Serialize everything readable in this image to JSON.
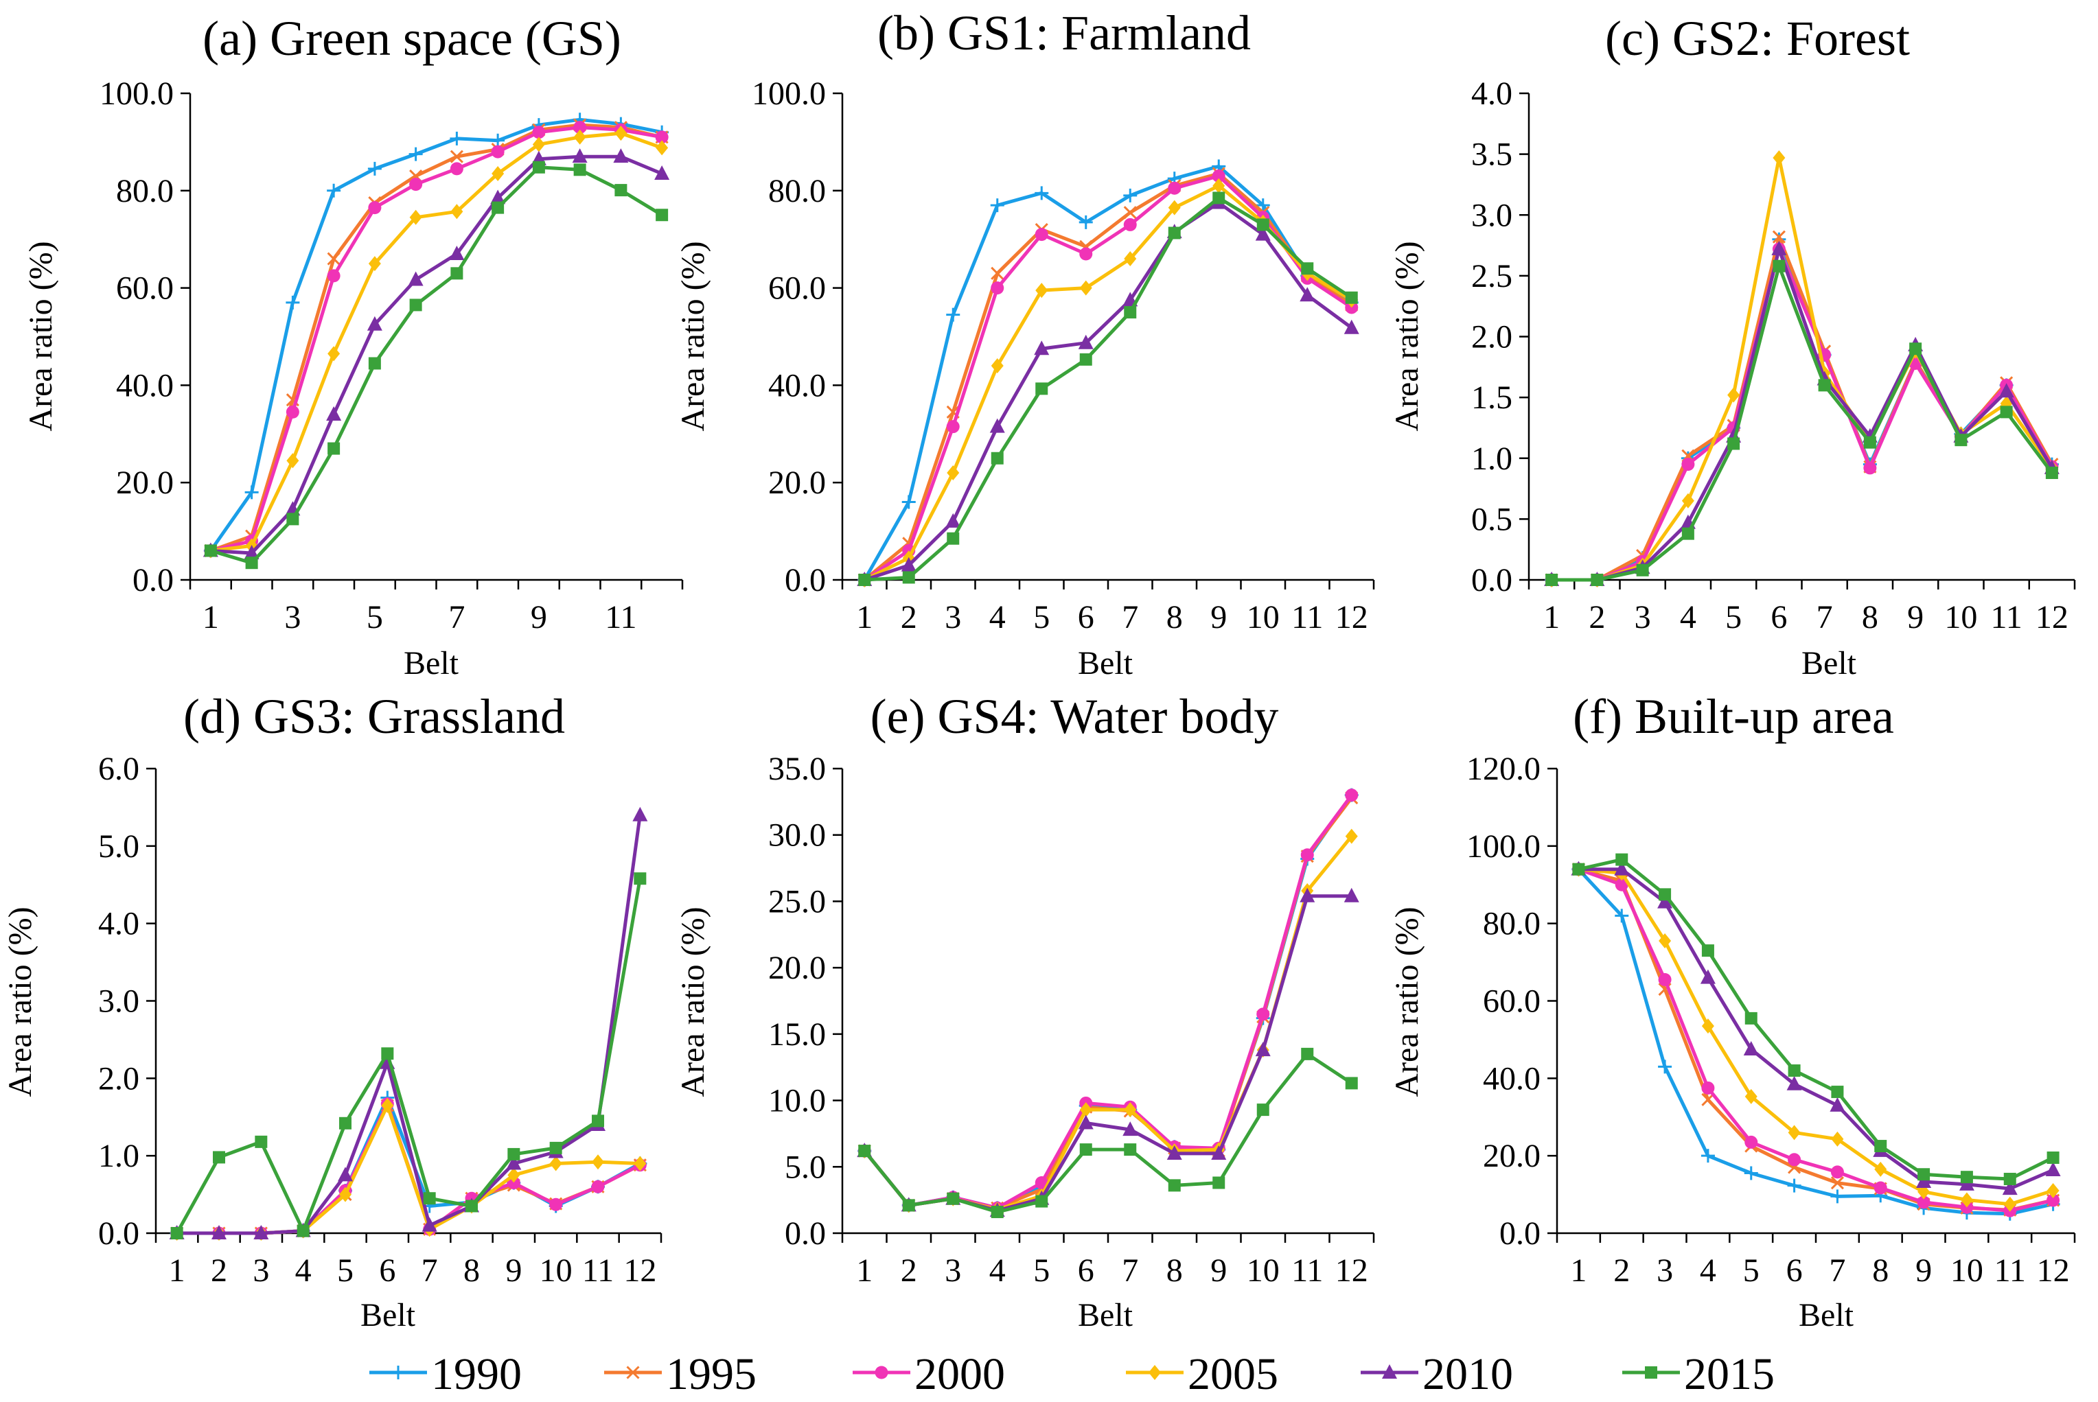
{
  "colors": {
    "1990": "#1a9ee8",
    "1995": "#f47a2f",
    "2000": "#f033b6",
    "2005": "#fbbf0a",
    "2010": "#7a2ea3",
    "2015": "#3aa23a"
  },
  "legend": [
    {
      "year": "1990",
      "marker": "plus"
    },
    {
      "year": "1995",
      "marker": "cross"
    },
    {
      "year": "2000",
      "marker": "circle"
    },
    {
      "year": "2005",
      "marker": "diamond"
    },
    {
      "year": "2010",
      "marker": "triangle"
    },
    {
      "year": "2015",
      "marker": "square"
    }
  ],
  "chart_data": [
    {
      "type": "line",
      "title": "(a) Green space (GS)",
      "xlabel": "Belt",
      "ylabel": "Area ratio (%)",
      "ylim": [
        0,
        100
      ],
      "ystep": 20,
      "ydec": 1,
      "x": [
        1,
        2,
        3,
        4,
        5,
        6,
        7,
        8,
        9,
        10,
        11,
        12
      ],
      "xticks": [
        "1",
        "3",
        "5",
        "7",
        "9",
        "11"
      ],
      "xtick_values": [
        1,
        3,
        5,
        7,
        9,
        11
      ],
      "series": [
        {
          "name": "1990",
          "values": [
            6,
            18,
            57,
            80,
            84.5,
            87.5,
            90.7,
            90.3,
            93.5,
            94.6,
            93.7,
            92
          ]
        },
        {
          "name": "1995",
          "values": [
            6,
            9,
            37,
            66,
            77.5,
            83,
            87,
            88.5,
            92.5,
            93.5,
            93,
            91
          ]
        },
        {
          "name": "2000",
          "values": [
            6,
            8,
            34.5,
            62.5,
            76.5,
            81.3,
            84.5,
            88,
            92,
            93,
            92.5,
            91
          ]
        },
        {
          "name": "2005",
          "values": [
            6,
            7,
            24.5,
            46.5,
            65,
            74.5,
            75.7,
            83.5,
            89.5,
            91,
            91.8,
            88.8
          ]
        },
        {
          "name": "2010",
          "values": [
            6,
            5.5,
            14.5,
            34,
            52.5,
            61.7,
            67,
            78.5,
            86.5,
            87,
            87,
            83.5
          ]
        },
        {
          "name": "2015",
          "values": [
            6,
            3.5,
            12.5,
            27,
            44.5,
            56.5,
            63,
            76.5,
            84.8,
            84.3,
            80.1,
            75
          ]
        }
      ]
    },
    {
      "type": "line",
      "title": "(b) GS1: Farmland",
      "xlabel": "Belt",
      "ylabel": "Area ratio (%)",
      "ylim": [
        0,
        100
      ],
      "ystep": 20,
      "ydec": 1,
      "x": [
        1,
        2,
        3,
        4,
        5,
        6,
        7,
        8,
        9,
        10,
        11,
        12
      ],
      "xticks": [
        "1",
        "2",
        "3",
        "4",
        "5",
        "6",
        "7",
        "8",
        "9",
        "10",
        "11",
        "12"
      ],
      "xtick_values": [
        1,
        2,
        3,
        4,
        5,
        6,
        7,
        8,
        9,
        10,
        11,
        12
      ],
      "series": [
        {
          "name": "1990",
          "values": [
            0,
            16,
            54.5,
            77,
            79.5,
            73.5,
            79,
            82.5,
            85,
            77,
            62.5,
            57
          ]
        },
        {
          "name": "1995",
          "values": [
            0,
            7.5,
            34.5,
            63,
            72,
            68.5,
            75.5,
            81,
            83.5,
            75.5,
            62.5,
            56.5
          ]
        },
        {
          "name": "2000",
          "values": [
            0,
            6,
            31.5,
            60,
            71,
            67,
            73,
            80.5,
            83,
            74.5,
            62,
            56
          ]
        },
        {
          "name": "2005",
          "values": [
            0,
            4.5,
            22,
            44,
            59.5,
            60,
            66,
            76.5,
            81,
            73.5,
            63,
            57.5
          ]
        },
        {
          "name": "2010",
          "values": [
            0,
            3,
            12,
            31.5,
            47.5,
            48.7,
            57.5,
            71.5,
            77.5,
            71,
            58.5,
            51.8
          ]
        },
        {
          "name": "2015",
          "values": [
            0,
            0.5,
            8.5,
            25,
            39.3,
            45.3,
            55,
            71.3,
            78.5,
            73,
            64,
            58
          ]
        }
      ]
    },
    {
      "type": "line",
      "title": "(c) GS2: Forest",
      "xlabel": "Belt",
      "ylabel": "Area ratio (%)",
      "ylim": [
        0,
        4
      ],
      "ystep": 0.5,
      "ydec": 1,
      "x": [
        1,
        2,
        3,
        4,
        5,
        6,
        7,
        8,
        9,
        10,
        11,
        12
      ],
      "xticks": [
        "1",
        "2",
        "3",
        "4",
        "5",
        "6",
        "7",
        "8",
        "9",
        "10",
        "11",
        "12"
      ],
      "xtick_values": [
        1,
        2,
        3,
        4,
        5,
        6,
        7,
        8,
        9,
        10,
        11,
        12
      ],
      "series": [
        {
          "name": "1990",
          "values": [
            0,
            0,
            0.18,
            1,
            1.25,
            2.8,
            1.85,
            0.95,
            1.8,
            1.2,
            1.6,
            0.95
          ]
        },
        {
          "name": "1995",
          "values": [
            0,
            0,
            0.2,
            1.02,
            1.27,
            2.82,
            1.88,
            0.93,
            1.8,
            1.18,
            1.62,
            0.95
          ]
        },
        {
          "name": "2000",
          "values": [
            0,
            0,
            0.15,
            0.95,
            1.25,
            2.72,
            1.85,
            0.92,
            1.78,
            1.18,
            1.6,
            0.93
          ]
        },
        {
          "name": "2005",
          "values": [
            0,
            0,
            0.12,
            0.65,
            1.52,
            3.47,
            1.7,
            1.15,
            1.88,
            1.2,
            1.45,
            0.92
          ]
        },
        {
          "name": "2010",
          "values": [
            0,
            0,
            0.1,
            0.47,
            1.18,
            2.72,
            1.65,
            1.18,
            1.93,
            1.18,
            1.55,
            0.92
          ]
        },
        {
          "name": "2015",
          "values": [
            0,
            0,
            0.08,
            0.38,
            1.12,
            2.58,
            1.6,
            1.13,
            1.9,
            1.15,
            1.38,
            0.88
          ]
        }
      ]
    },
    {
      "type": "line",
      "title": "(d) GS3: Grassland",
      "xlabel": "Belt",
      "ylabel": "Area ratio (%)",
      "ylim": [
        0,
        6
      ],
      "ystep": 1,
      "ydec": 1,
      "x": [
        1,
        2,
        3,
        4,
        5,
        6,
        7,
        8,
        9,
        10,
        11,
        12
      ],
      "xticks": [
        "1",
        "2",
        "3",
        "4",
        "5",
        "6",
        "7",
        "8",
        "9",
        "10",
        "11",
        "12"
      ],
      "xtick_values": [
        1,
        2,
        3,
        4,
        5,
        6,
        7,
        8,
        9,
        10,
        11,
        12
      ],
      "series": [
        {
          "name": "1990",
          "values": [
            0,
            0,
            0,
            0.03,
            0.55,
            1.75,
            0.35,
            0.4,
            0.65,
            0.35,
            0.6,
            0.9
          ]
        },
        {
          "name": "1995",
          "values": [
            0,
            0,
            0,
            0.03,
            0.5,
            1.65,
            0.05,
            0.45,
            0.62,
            0.38,
            0.6,
            0.88
          ]
        },
        {
          "name": "2000",
          "values": [
            0,
            0,
            0,
            0.03,
            0.55,
            1.67,
            0.05,
            0.45,
            0.65,
            0.37,
            0.6,
            0.88
          ]
        },
        {
          "name": "2005",
          "values": [
            0,
            0,
            0,
            0.03,
            0.5,
            1.65,
            0.05,
            0.35,
            0.75,
            0.9,
            0.92,
            0.9
          ]
        },
        {
          "name": "2010",
          "values": [
            0,
            0,
            0,
            0.03,
            0.75,
            2.2,
            0.1,
            0.35,
            0.9,
            1.05,
            1.4,
            5.4
          ]
        },
        {
          "name": "2015",
          "values": [
            0,
            0.98,
            1.18,
            0.03,
            1.42,
            2.32,
            0.45,
            0.35,
            1.02,
            1.1,
            1.45,
            4.58
          ]
        }
      ]
    },
    {
      "type": "line",
      "title": "(e) GS4: Water body",
      "xlabel": "Belt",
      "ylabel": "Area ratio (%)",
      "ylim": [
        0,
        35
      ],
      "ystep": 5,
      "ydec": 1,
      "x": [
        1,
        2,
        3,
        4,
        5,
        6,
        7,
        8,
        9,
        10,
        11,
        12
      ],
      "xticks": [
        "1",
        "2",
        "3",
        "4",
        "5",
        "6",
        "7",
        "8",
        "9",
        "10",
        "11",
        "12"
      ],
      "xtick_values": [
        1,
        2,
        3,
        4,
        5,
        6,
        7,
        8,
        9,
        10,
        11,
        12
      ],
      "series": [
        {
          "name": "1990",
          "values": [
            6.2,
            2.1,
            2.7,
            1.9,
            3.5,
            9.6,
            9.3,
            6.5,
            6.3,
            16.2,
            28.2,
            33
          ]
        },
        {
          "name": "1995",
          "values": [
            6.2,
            2.1,
            2.6,
            1.9,
            3.3,
            9.5,
            9.2,
            6.4,
            6.2,
            16.3,
            28.4,
            32.8
          ]
        },
        {
          "name": "2000",
          "values": [
            6.2,
            2.1,
            2.7,
            1.9,
            3.8,
            9.8,
            9.5,
            6.5,
            6.4,
            16.5,
            28.5,
            33
          ]
        },
        {
          "name": "2005",
          "values": [
            6.2,
            2.1,
            2.6,
            1.8,
            2.8,
            9.3,
            9.3,
            6.2,
            6.3,
            13.8,
            25.8,
            29.9
          ]
        },
        {
          "name": "2010",
          "values": [
            6.2,
            2.1,
            2.6,
            1.7,
            2.6,
            8.3,
            7.8,
            6,
            6,
            13.8,
            25.4,
            25.4
          ]
        },
        {
          "name": "2015",
          "values": [
            6.2,
            2.1,
            2.6,
            1.6,
            2.4,
            6.3,
            6.3,
            3.6,
            3.8,
            9.3,
            13.5,
            11.3
          ]
        }
      ]
    },
    {
      "type": "line",
      "title": "(f) Built-up area",
      "xlabel": "Belt",
      "ylabel": "Area ratio (%)",
      "ylim": [
        0,
        120
      ],
      "ystep": 20,
      "ydec": 1,
      "x": [
        1,
        2,
        3,
        4,
        5,
        6,
        7,
        8,
        9,
        10,
        11,
        12
      ],
      "xticks": [
        "1",
        "2",
        "3",
        "4",
        "5",
        "6",
        "7",
        "8",
        "9",
        "10",
        "11",
        "12"
      ],
      "xtick_values": [
        1,
        2,
        3,
        4,
        5,
        6,
        7,
        8,
        9,
        10,
        11,
        12
      ],
      "series": [
        {
          "name": "1990",
          "values": [
            94,
            82,
            43,
            20,
            15.5,
            12.3,
            9.5,
            9.7,
            6.5,
            5.3,
            5,
            7.5
          ]
        },
        {
          "name": "1995",
          "values": [
            94,
            91,
            63,
            34.5,
            22.5,
            17,
            13,
            11.5,
            7.5,
            6.5,
            6,
            8.5
          ]
        },
        {
          "name": "2000",
          "values": [
            94,
            90,
            65.5,
            37.5,
            23.5,
            19,
            15.8,
            11.7,
            8,
            6.7,
            5.8,
            8.5
          ]
        },
        {
          "name": "2005",
          "values": [
            94,
            93,
            75.5,
            53.5,
            35.3,
            26,
            24.3,
            16.5,
            10.7,
            8.6,
            7.5,
            11
          ]
        },
        {
          "name": "2010",
          "values": [
            94,
            94,
            85.5,
            66,
            47.5,
            38.5,
            33,
            21.3,
            13.3,
            12.6,
            11.5,
            16.3
          ]
        },
        {
          "name": "2015",
          "values": [
            94,
            96.5,
            87.5,
            73,
            55.5,
            42,
            36.5,
            22.5,
            15.2,
            14.5,
            14,
            19.5
          ]
        }
      ]
    }
  ]
}
